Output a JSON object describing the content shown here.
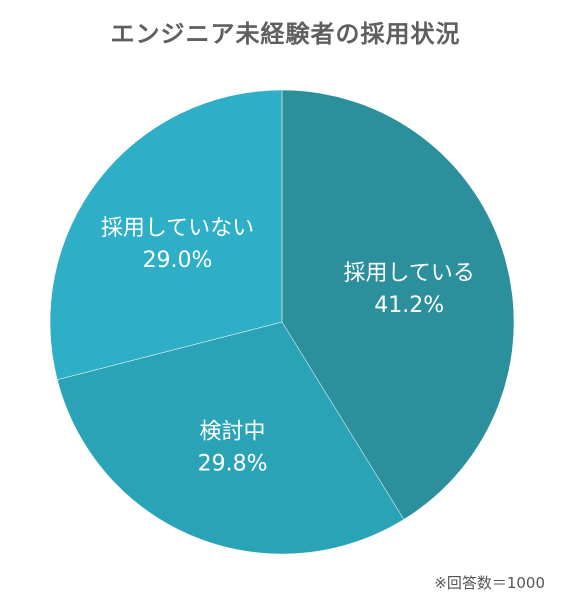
{
  "chart_data": {
    "type": "pie",
    "title": "エンジニア未経験者の採用状況",
    "slices": [
      {
        "label": "採用している",
        "value": 41.2,
        "value_label": "41.2%",
        "color": "#2b8f9c"
      },
      {
        "label": "検討中",
        "value": 29.8,
        "value_label": "29.8%",
        "color": "#2ba3b6"
      },
      {
        "label": "採用していない",
        "value": 29.0,
        "value_label": "29.0%",
        "color": "#2eafc7"
      }
    ],
    "start": "12 o'clock",
    "direction": "clockwise",
    "note": "※回答数＝1000"
  }
}
